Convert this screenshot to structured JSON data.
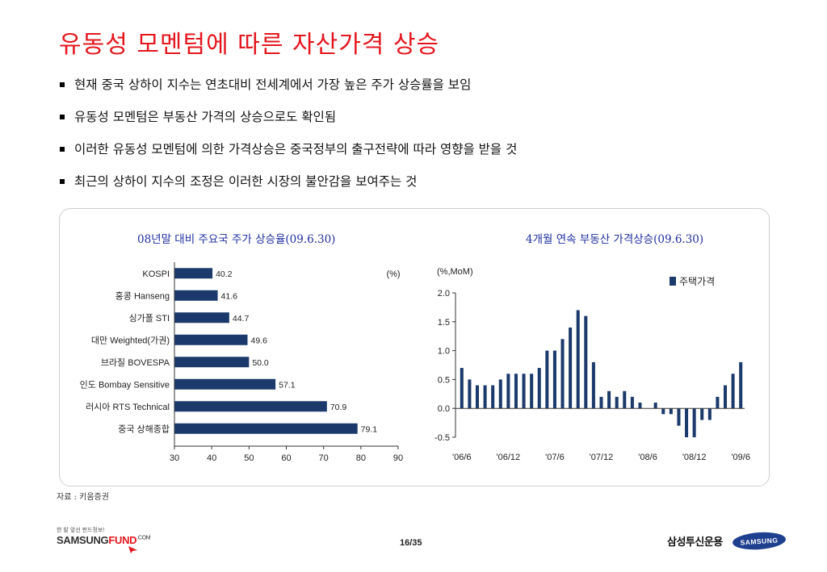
{
  "title": "유동성 모멘텀에 따른 자산가격 상승",
  "bullets": [
    "현재 중국 상하이 지수는 연초대비 전세계에서 가장 높은 주가 상승률을 보임",
    "유동성 모멘텀은 부동산 가격의 상승으로도 확인됨",
    "이러한 유동성 모멘텀에 의한 가격상승은 중국정부의 출구전략에 따라 영향을 받을 것",
    "최근의 상하이 지수의 조정은 이러한 시장의 불안감을 보여주는 것"
  ],
  "chart_data": [
    {
      "type": "bar",
      "orientation": "horizontal",
      "title": "08년말 대비 주요국 주가 상승율(09.6.30)",
      "unit": "(%)",
      "categories": [
        "KOSPI",
        "홍콩 Hanseng",
        "싱가폴 STI",
        "대만 Weighted(가권)",
        "브라질 BOVESPA",
        "인도 Bombay Sensitive",
        "러시아 RTS Technical",
        "중국 상해종합"
      ],
      "values": [
        40.2,
        41.6,
        44.7,
        49.6,
        50.0,
        57.1,
        70.9,
        79.1
      ],
      "value_labels": [
        "40.2",
        "41.6",
        "44.7",
        "49.6",
        "50.0",
        "57.1",
        "70.9",
        "79.1"
      ],
      "xlim": [
        30,
        90
      ],
      "xticks": [
        "30",
        "40",
        "50",
        "60",
        "70",
        "80",
        "90"
      ],
      "color": "#1b3a6b",
      "grid": false
    },
    {
      "type": "bar",
      "title": "4개월 연속 부동산 가격상승(09.6.30)",
      "ylabel": "(%,MoM)",
      "series": [
        {
          "name": "주택가격",
          "values": [
            0.7,
            0.5,
            0.4,
            0.4,
            0.4,
            0.5,
            0.6,
            0.6,
            0.6,
            0.6,
            0.7,
            1.0,
            1.0,
            1.2,
            1.4,
            1.7,
            1.6,
            0.8,
            0.2,
            0.3,
            0.2,
            0.3,
            0.2,
            0.1,
            0.0,
            0.1,
            -0.1,
            -0.1,
            -0.3,
            -0.5,
            -0.5,
            -0.2,
            -0.2,
            0.2,
            0.4,
            0.6,
            0.8
          ]
        }
      ],
      "xticks": [
        "'06/6",
        "'06/12",
        "'07/6",
        "'07/12",
        "'08/6",
        "'08/12",
        "'09/6"
      ],
      "ylim": [
        -0.5,
        2.0
      ],
      "yticks": [
        "2.0",
        "1.5",
        "1.0",
        "0.5",
        "0.0",
        "-0.5"
      ],
      "color": "#1b3a6b",
      "legend": "top-right",
      "grid": false
    }
  ],
  "source": "자료 : 키움증권",
  "footer": {
    "tagline": "한 발 앞선 펀드정보!",
    "logo_main": "SAMSUNG",
    "logo_accent": "FUND",
    "logo_suffix": ".COM",
    "page": "16/35",
    "brand_kr": "삼성투신운용",
    "brand_logo": "SAMSUNG"
  }
}
